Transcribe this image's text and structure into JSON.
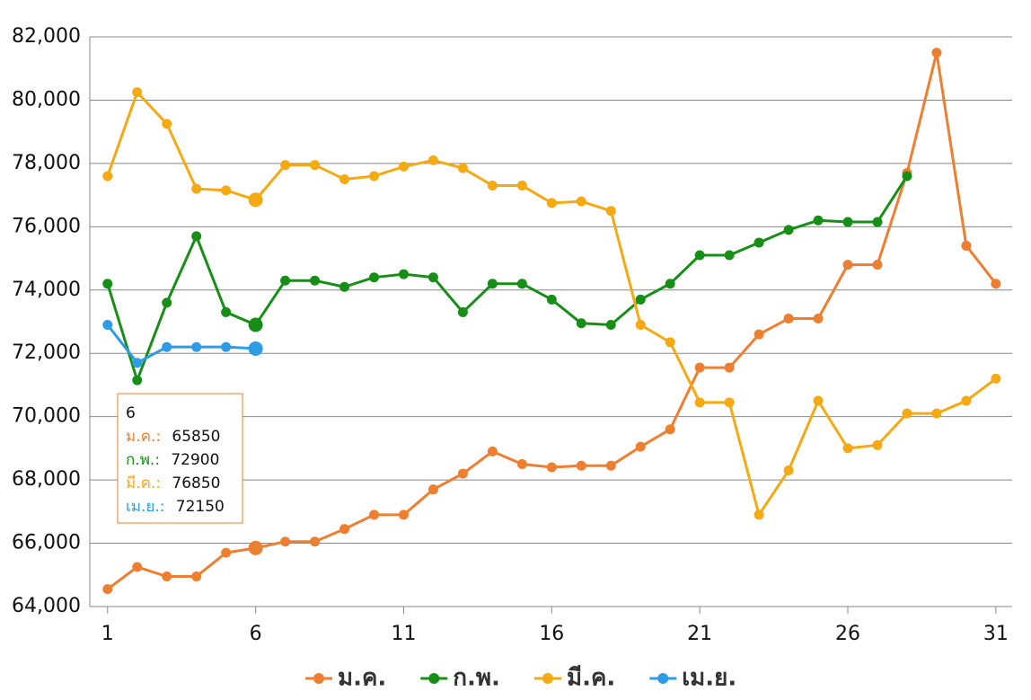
{
  "chart_data": {
    "type": "line",
    "x": [
      1,
      2,
      3,
      4,
      5,
      6,
      7,
      8,
      9,
      10,
      11,
      12,
      13,
      14,
      15,
      16,
      17,
      18,
      19,
      20,
      21,
      22,
      23,
      24,
      25,
      26,
      27,
      28,
      29,
      30,
      31
    ],
    "xlim": [
      0.4,
      31.55
    ],
    "xticks": [
      1,
      6,
      11,
      16,
      21,
      26,
      31
    ],
    "ylim": [
      64000,
      82000
    ],
    "yticks": [
      {
        "value": 64000,
        "label": "64,000"
      },
      {
        "value": 66000,
        "label": "66,000"
      },
      {
        "value": 68000,
        "label": "68,000"
      },
      {
        "value": 70000,
        "label": "70,000"
      },
      {
        "value": 72000,
        "label": "72,000"
      },
      {
        "value": 74000,
        "label": "74,000"
      },
      {
        "value": 76000,
        "label": "76,000"
      },
      {
        "value": 78000,
        "label": "78,000"
      },
      {
        "value": 80000,
        "label": "80,000"
      },
      {
        "value": 82000,
        "label": "82,000"
      }
    ],
    "grid": true,
    "legend": "bottom",
    "series": [
      {
        "name": "ม.ค.",
        "color": "#ef7f30",
        "values": [
          64550,
          65250,
          64950,
          64950,
          65700,
          65850,
          66050,
          66050,
          66450,
          66900,
          66900,
          67700,
          68200,
          68900,
          68500,
          68400,
          68450,
          68450,
          69050,
          69600,
          71550,
          71550,
          72600,
          73100,
          73100,
          74800,
          74800,
          77700,
          81500,
          75400,
          74200
        ]
      },
      {
        "name": "ก.พ.",
        "color": "#178f17",
        "values": [
          74200,
          71150,
          73600,
          75700,
          73300,
          72900,
          74300,
          74300,
          74100,
          74400,
          74500,
          74400,
          73300,
          74200,
          74200,
          73700,
          72950,
          72900,
          73700,
          74200,
          75100,
          75100,
          75500,
          75900,
          76200,
          76150,
          76150,
          77600,
          null,
          null,
          null
        ]
      },
      {
        "name": "มี.ค.",
        "color": "#f5a912",
        "values": [
          77600,
          80250,
          79250,
          77200,
          77150,
          76850,
          77950,
          77950,
          77500,
          77600,
          77900,
          78100,
          77850,
          77300,
          77300,
          76750,
          76800,
          76500,
          72900,
          72350,
          70450,
          70450,
          66900,
          68300,
          70500,
          69000,
          69100,
          70100,
          70100,
          70500,
          71200
        ]
      },
      {
        "name": "เม.ย.",
        "color": "#2e9be6",
        "values": [
          72900,
          71700,
          72200,
          72200,
          72200,
          72150,
          null,
          null,
          null,
          null,
          null,
          null,
          null,
          null,
          null,
          null,
          null,
          null,
          null,
          null,
          null,
          null,
          null,
          null,
          null,
          null,
          null,
          null,
          null,
          null,
          null
        ]
      }
    ],
    "highlight_index": 5
  }
}
